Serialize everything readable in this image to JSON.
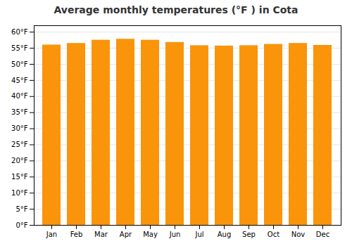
{
  "chart_data": {
    "type": "bar",
    "title": "Average monthly temperatures (°F ) in Cota",
    "categories": [
      "Jan",
      "Feb",
      "Mar",
      "Apr",
      "May",
      "Jun",
      "Jul",
      "Aug",
      "Sep",
      "Oct",
      "Nov",
      "Dec"
    ],
    "values": [
      56.0,
      56.5,
      57.5,
      57.8,
      57.5,
      56.8,
      55.8,
      55.7,
      55.8,
      56.2,
      56.5,
      55.9
    ],
    "color": "#fa940a",
    "ylim": [
      0,
      62
    ],
    "yticks": [
      {
        "value": 0,
        "label": "0°F"
      },
      {
        "value": 5,
        "label": "5°F"
      },
      {
        "value": 10,
        "label": "10°F"
      },
      {
        "value": 15,
        "label": "15°F"
      },
      {
        "value": 20,
        "label": "20°F"
      },
      {
        "value": 25,
        "label": "25°F"
      },
      {
        "value": 30,
        "label": "30°F"
      },
      {
        "value": 35,
        "label": "35°F"
      },
      {
        "value": 40,
        "label": "40°F"
      },
      {
        "value": 45,
        "label": "45°F"
      },
      {
        "value": 50,
        "label": "50°F"
      },
      {
        "value": 55,
        "label": "55°F"
      },
      {
        "value": 60,
        "label": "60°F"
      }
    ],
    "grid": true
  }
}
